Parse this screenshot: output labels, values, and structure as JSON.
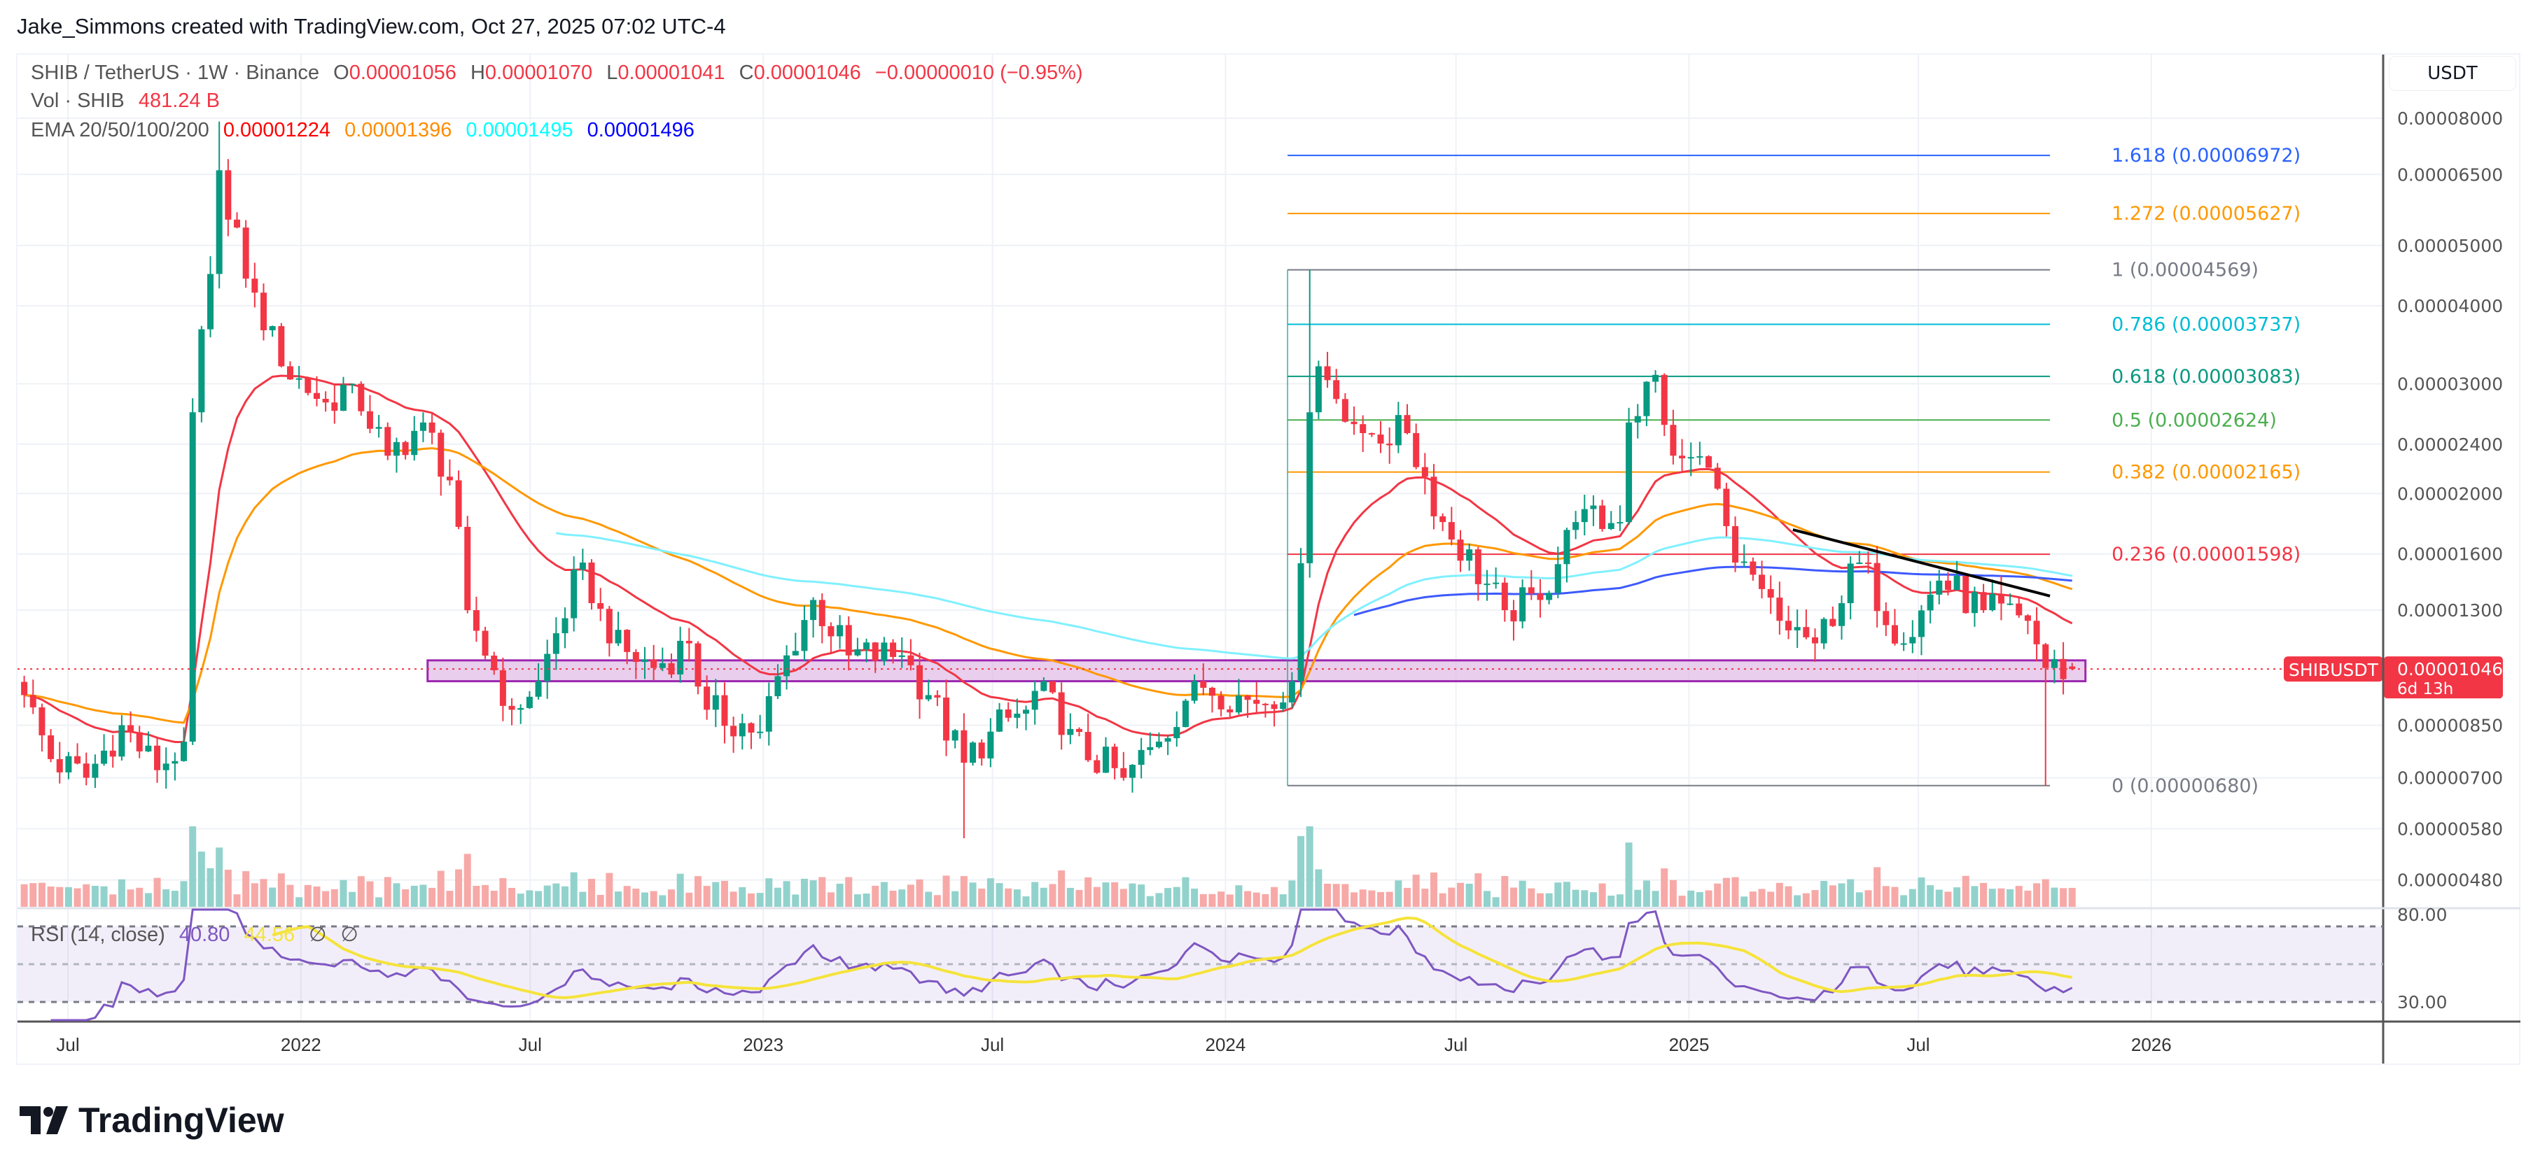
{
  "credit": "Jake_Simmons created with TradingView.com, Oct 27, 2025 07:02 UTC-4",
  "legend": {
    "symbol": "SHIB / TetherUS · 1W · Binance",
    "open_label": "O",
    "open": "0.00001056",
    "high_label": "H",
    "high": "0.00001070",
    "low_label": "L",
    "low": "0.00001041",
    "close_label": "C",
    "close": "0.00001046",
    "change": "−0.00000010 (−0.95%)",
    "vol_label": "Vol · SHIB",
    "vol": "481.24 B",
    "ema_label": "EMA 20/50/100/200",
    "ema20": "0.00001224",
    "ema50": "0.00001396",
    "ema100": "0.00001495",
    "ema200": "0.00001496",
    "rsi_label": "RSI (14, close)",
    "rsi": "40.80",
    "rsi_ma": "44.56",
    "rsi_extra1": "∅",
    "rsi_extra2": "∅"
  },
  "colors": {
    "up": "#089981",
    "down": "#f23645",
    "vol_up": "#92d2cc",
    "vol_down": "#f7a9a7",
    "ema20": "#f23645",
    "ema50": "#ff9800",
    "ema100": "#80f0ff",
    "ema200": "#3d5afe",
    "rsi": "#7e57c2",
    "rsi_ma": "#f5e33b",
    "support_fill": "#e1bee7",
    "support_border": "#9c27b0"
  },
  "currency": "USDT",
  "price_badge": {
    "symbol": "SHIBUSDT",
    "price": "0.00001046",
    "countdown": "6d 13h"
  },
  "logo": {
    "text": "TradingView",
    "icon": "tradingview-logo-icon"
  },
  "chart_data": {
    "type": "candlestick",
    "interval": "1W",
    "scale": "log",
    "grid": true,
    "price_ticks": [
      "0.00008000",
      "0.00006500",
      "0.00005000",
      "0.00004000",
      "0.00003000",
      "0.00002400",
      "0.00002000",
      "0.00001600",
      "0.00001300",
      "0.00000850",
      "0.00000700",
      "0.00000580",
      "0.00000480"
    ],
    "time_ticks": [
      {
        "label": "Jul",
        "date": "2021-07-01"
      },
      {
        "label": "2022",
        "date": "2022-01-01"
      },
      {
        "label": "Jul",
        "date": "2022-07-01"
      },
      {
        "label": "2023",
        "date": "2023-01-01"
      },
      {
        "label": "Jul",
        "date": "2023-07-01"
      },
      {
        "label": "2024",
        "date": "2024-01-01"
      },
      {
        "label": "Jul",
        "date": "2024-07-01"
      },
      {
        "label": "2025",
        "date": "2025-01-01"
      },
      {
        "label": "Jul",
        "date": "2025-07-01"
      },
      {
        "label": "2026",
        "date": "2026-01-01"
      }
    ],
    "close_path": [
      [
        "2021-05-24",
        9.5e-06
      ],
      [
        "2021-06-14",
        7.5e-06
      ],
      [
        "2021-07-12",
        7e-06
      ],
      [
        "2021-08-09",
        8.5e-06
      ],
      [
        "2021-09-06",
        7.2e-06
      ],
      [
        "2021-09-27",
        8e-06
      ],
      [
        "2021-10-04",
        2.7e-05
      ],
      [
        "2021-10-18",
        4.5e-05
      ],
      [
        "2021-10-25",
        6.6e-05
      ],
      [
        "2021-11-01",
        5.5e-05
      ],
      [
        "2021-11-22",
        4.2e-05
      ],
      [
        "2021-12-13",
        3.2e-05
      ],
      [
        "2022-01-17",
        2.8e-05
      ],
      [
        "2022-02-07",
        3e-05
      ],
      [
        "2022-03-07",
        2.3e-05
      ],
      [
        "2022-04-04",
        2.6e-05
      ],
      [
        "2022-04-25",
        2.1e-05
      ],
      [
        "2022-05-09",
        1.3e-05
      ],
      [
        "2022-06-13",
        9e-06
      ],
      [
        "2022-07-04",
        1e-05
      ],
      [
        "2022-08-08",
        1.55e-05
      ],
      [
        "2022-08-29",
        1.15e-05
      ],
      [
        "2022-10-03",
        1.05e-05
      ],
      [
        "2022-10-31",
        1.15e-05
      ],
      [
        "2022-11-14",
        9e-06
      ],
      [
        "2022-12-26",
        8.3e-06
      ],
      [
        "2023-01-16",
        1.1e-05
      ],
      [
        "2023-02-06",
        1.35e-05
      ],
      [
        "2023-03-06",
        1.1e-05
      ],
      [
        "2023-04-17",
        1.1e-05
      ],
      [
        "2023-05-08",
        9.5e-06
      ],
      [
        "2023-06-05",
        7.4e-06
      ],
      [
        "2023-06-26",
        8.3e-06
      ],
      [
        "2023-07-24",
        9e-06
      ],
      [
        "2023-08-07",
        1e-05
      ],
      [
        "2023-08-21",
        8.2e-06
      ],
      [
        "2023-10-09",
        7e-06
      ],
      [
        "2023-11-06",
        8e-06
      ],
      [
        "2023-12-04",
        1e-05
      ],
      [
        "2024-01-22",
        9.2e-06
      ],
      [
        "2024-02-19",
        1e-05
      ],
      [
        "2024-03-04",
        2.7e-05
      ],
      [
        "2024-03-11",
        3.2e-05
      ],
      [
        "2024-04-15",
        2.5e-05
      ],
      [
        "2024-05-20",
        2.5e-05
      ],
      [
        "2024-06-17",
        1.8e-05
      ],
      [
        "2024-08-05",
        1.3e-05
      ],
      [
        "2024-09-02",
        1.35e-05
      ],
      [
        "2024-09-30",
        1.8e-05
      ],
      [
        "2024-11-04",
        1.8e-05
      ],
      [
        "2024-11-11",
        2.6e-05
      ],
      [
        "2024-12-02",
        3.1e-05
      ],
      [
        "2024-12-16",
        2.3e-05
      ],
      [
        "2025-01-13",
        2.2e-05
      ],
      [
        "2025-02-03",
        1.55e-05
      ],
      [
        "2025-03-10",
        1.25e-05
      ],
      [
        "2025-04-07",
        1.15e-05
      ],
      [
        "2025-05-12",
        1.55e-05
      ],
      [
        "2025-06-16",
        1.15e-05
      ],
      [
        "2025-07-14",
        1.45e-05
      ],
      [
        "2025-08-18",
        1.3e-05
      ],
      [
        "2025-09-22",
        1.25e-05
      ],
      [
        "2025-10-06",
        1.05e-05
      ],
      [
        "2025-10-27",
        1.046e-05
      ]
    ],
    "wick_extremes": [
      {
        "date": "2021-10-25",
        "high": 7.9e-05
      },
      {
        "date": "2024-03-04",
        "high": 4.569e-05
      },
      {
        "date": "2025-10-06",
        "low": 6.8e-06
      },
      {
        "date": "2023-06-05",
        "low": 5.6e-06
      }
    ],
    "last_candle": {
      "date": "2025-10-27",
      "open": 1.056e-05,
      "high": 1.07e-05,
      "low": 1.041e-05,
      "close": 1.046e-05
    },
    "fib_retracement": {
      "start_date": "2024-02-19",
      "end_date": "2025-10-13",
      "levels": [
        {
          "ratio": "1.618",
          "price": "0.00006972",
          "color": "#2962ff"
        },
        {
          "ratio": "1.272",
          "price": "0.00005627",
          "color": "#ff9800"
        },
        {
          "ratio": "1",
          "price": "0.00004569",
          "color": "#787b86"
        },
        {
          "ratio": "0.786",
          "price": "0.00003737",
          "color": "#00bcd4"
        },
        {
          "ratio": "0.618",
          "price": "0.00003083",
          "color": "#089981"
        },
        {
          "ratio": "0.5",
          "price": "0.00002624",
          "color": "#4caf50"
        },
        {
          "ratio": "0.382",
          "price": "0.00002165",
          "color": "#ff9800"
        },
        {
          "ratio": "0.236",
          "price": "0.00001598",
          "color": "#f23645"
        },
        {
          "ratio": "0",
          "price": "0.00000680",
          "color": "#787b86"
        }
      ]
    },
    "support_zone": {
      "start_date": "2022-04-11",
      "end_date": "2025-11-10",
      "top": 1.08e-05,
      "bottom": 1e-05
    },
    "trendline": {
      "from": [
        "2025-03-24",
        1.75e-05
      ],
      "to": [
        "2025-10-13",
        1.37e-05
      ]
    },
    "rsi": {
      "period": 14,
      "ma_period": 14,
      "levels": [
        70,
        50,
        30
      ],
      "tick_labels": [
        "80.00",
        "30.00"
      ]
    }
  }
}
